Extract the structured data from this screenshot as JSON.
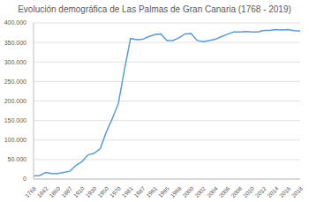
{
  "chart_data": {
    "type": "line",
    "title": "Evolución demográfica de Las Palmas de Gran Canaria (1768 - 2019)",
    "categories": [
      "1768",
      null,
      "1842",
      null,
      "1860",
      null,
      "1887",
      null,
      "1910",
      null,
      "1930",
      null,
      "1950",
      null,
      "1970",
      null,
      "1981",
      null,
      "1987",
      null,
      "1991",
      null,
      "1995",
      null,
      "1998",
      null,
      "2000",
      null,
      "2002",
      null,
      "2004",
      null,
      "2006",
      null,
      "2008",
      null,
      "2010",
      null,
      "2012",
      null,
      "2014",
      null,
      "2016",
      null,
      "2018"
    ],
    "values": [
      8000,
      9000,
      17000,
      14000,
      14000,
      17000,
      20000,
      35000,
      45000,
      62000,
      66000,
      78000,
      120000,
      155000,
      194000,
      280000,
      360000,
      357000,
      358000,
      365000,
      370000,
      372000,
      355000,
      355000,
      362000,
      372000,
      373000,
      355000,
      352000,
      355000,
      358000,
      365000,
      371000,
      377000,
      377000,
      378000,
      377000,
      377000,
      381000,
      381000,
      383000,
      382000,
      383000,
      380000,
      379000
    ],
    "color": "#5b9bd5",
    "ylim": [
      0,
      400000
    ],
    "yticks": [
      0,
      {
        "value": 50000,
        "label": "50.000"
      },
      {
        "value": 100000,
        "label": "100.000"
      },
      {
        "value": 150000,
        "label": "150.000"
      },
      {
        "value": 200000,
        "label": "200.000"
      },
      {
        "value": 250000,
        "label": "250.000"
      },
      {
        "value": 300000,
        "label": "300.000"
      },
      {
        "value": 350000,
        "label": "350.000"
      },
      {
        "value": 400000,
        "label": "400.000"
      }
    ],
    "grid": true
  }
}
